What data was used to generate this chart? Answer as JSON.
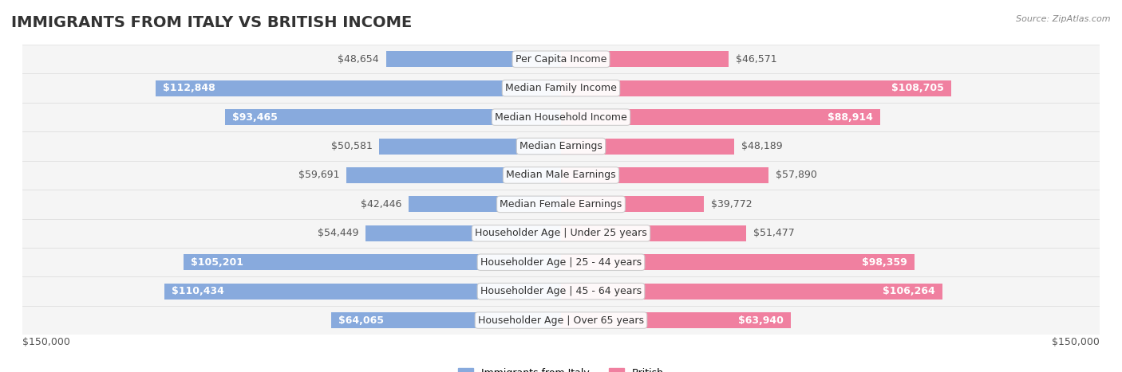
{
  "title": "IMMIGRANTS FROM ITALY VS BRITISH INCOME",
  "source": "Source: ZipAtlas.com",
  "categories": [
    "Per Capita Income",
    "Median Family Income",
    "Median Household Income",
    "Median Earnings",
    "Median Male Earnings",
    "Median Female Earnings",
    "Householder Age | Under 25 years",
    "Householder Age | 25 - 44 years",
    "Householder Age | 45 - 64 years",
    "Householder Age | Over 65 years"
  ],
  "italy_values": [
    48654,
    112848,
    93465,
    50581,
    59691,
    42446,
    54449,
    105201,
    110434,
    64065
  ],
  "british_values": [
    46571,
    108705,
    88914,
    48189,
    57890,
    39772,
    51477,
    98359,
    106264,
    63940
  ],
  "italy_color": "#88aadd",
  "british_color": "#f080a0",
  "italy_label": "Immigrants from Italy",
  "british_label": "British",
  "italy_text_color_threshold": 60000,
  "max_value": 150000,
  "x_axis_label_left": "$150,000",
  "x_axis_label_right": "$150,000",
  "background_color": "#ffffff",
  "row_bg_color": "#f0f0f0",
  "title_fontsize": 14,
  "bar_label_fontsize": 9,
  "category_fontsize": 9,
  "axis_fontsize": 9
}
